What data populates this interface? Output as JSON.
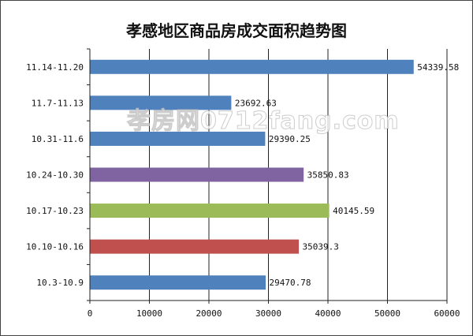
{
  "chart_data": {
    "type": "bar",
    "orientation": "horizontal",
    "title": "孝感地区商品房成交面积趋势图",
    "categories": [
      "10.3-10.9",
      "10.10-10.16",
      "10.17-10.23",
      "10.24-10.30",
      "10.31-11.6",
      "11.7-11.13",
      "11.14-11.20"
    ],
    "values": [
      29470.78,
      35039.3,
      40145.59,
      35850.83,
      29390.25,
      23692.63,
      54339.58
    ],
    "data_labels": [
      "29470.78",
      "35039.3",
      "40145.59",
      "35850.83",
      "29390.25",
      "23692.63",
      "54339.58"
    ],
    "colors": [
      "#4f81bd",
      "#c0504d",
      "#9bbb59",
      "#8064a2",
      "#4f81bd",
      "#4f81bd",
      "#4f81bd"
    ],
    "xlim": [
      0,
      60000
    ],
    "xticks": [
      "0",
      "10000",
      "20000",
      "30000",
      "40000",
      "50000",
      "60000"
    ],
    "grid": true,
    "xlabel": "",
    "ylabel": ""
  },
  "watermark": "孝房网0712fang.com"
}
